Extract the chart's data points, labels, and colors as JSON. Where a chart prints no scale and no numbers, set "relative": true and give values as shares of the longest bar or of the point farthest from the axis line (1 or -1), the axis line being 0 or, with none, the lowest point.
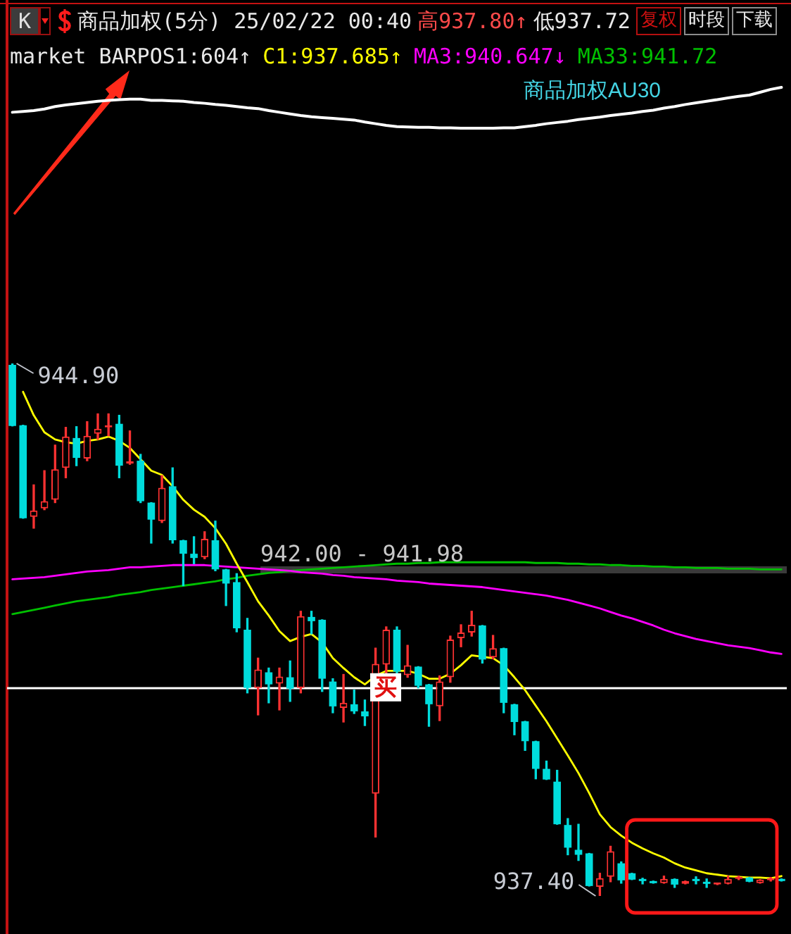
{
  "chart_data": [
    {
      "type": "line",
      "relative": true,
      "title": "商品加权(5分) 25/02/22 00:40",
      "categories": [
        null,
        null,
        null,
        null,
        null,
        null,
        null,
        null,
        null,
        null,
        null,
        null,
        null,
        null,
        null,
        null,
        null,
        null,
        null,
        null,
        null,
        null,
        null,
        null,
        null,
        null,
        null,
        null,
        null,
        null,
        null,
        null,
        null,
        null,
        null,
        null,
        null,
        null,
        null,
        null,
        null,
        null,
        null,
        null,
        null,
        null,
        null,
        null,
        null,
        null,
        null,
        null,
        null,
        null,
        null,
        null,
        null,
        null,
        null,
        null,
        null,
        null,
        null,
        null,
        null,
        null,
        null,
        null,
        null,
        null,
        null,
        null,
        null
      ],
      "series": [
        {
          "name": "商品加权AU30",
          "color": "#ffffff",
          "values": [
            0.39,
            0.41,
            0.43,
            0.47,
            0.53,
            0.57,
            0.6,
            0.63,
            0.66,
            0.68,
            0.7,
            0.71,
            0.71,
            0.68,
            0.68,
            0.67,
            0.66,
            0.63,
            0.61,
            0.58,
            0.56,
            0.53,
            0.5,
            0.48,
            0.43,
            0.39,
            0.35,
            0.31,
            0.28,
            0.26,
            0.24,
            0.22,
            0.2,
            0.15,
            0.11,
            0.07,
            0.04,
            0.03,
            0.02,
            0.02,
            0.01,
            0.01,
            0,
            0,
            0,
            0,
            0.01,
            0.01,
            0.04,
            0.07,
            0.11,
            0.14,
            0.17,
            0.21,
            0.24,
            0.27,
            0.31,
            0.34,
            0.37,
            0.41,
            0.44,
            0.49,
            0.53,
            0.58,
            0.62,
            0.66,
            0.7,
            0.74,
            0.78,
            0.81,
            0.88,
            0.95,
            1
          ]
        }
      ],
      "annotations": [
        "K",
        "高937.80↑",
        "低937.72",
        "复权",
        "时段",
        "下载",
        "market BARPOS1:604↑"
      ],
      "legend": "top",
      "tick_labels": false
    },
    {
      "type": "candlestick",
      "categories": [
        null,
        null,
        null,
        null,
        null,
        null,
        null,
        null,
        null,
        null,
        null,
        null,
        null,
        null,
        null,
        null,
        null,
        null,
        null,
        null,
        null,
        null,
        null,
        null,
        null,
        null,
        null,
        null,
        null,
        null,
        null,
        null,
        null,
        null,
        null,
        null,
        null,
        null,
        null,
        null,
        null,
        null,
        null,
        null,
        null,
        null,
        null,
        null,
        null,
        null,
        null,
        null,
        null,
        null,
        null,
        null,
        null,
        null,
        null,
        null,
        null,
        null,
        null,
        null,
        null,
        null,
        null,
        null,
        null,
        null,
        null,
        null,
        null
      ],
      "ohlc": [
        [
          944.88,
          944.9,
          944.02,
          944.02
        ],
        [
          944.03,
          944.03,
          942.72,
          942.72
        ],
        [
          942.74,
          943.19,
          942.58,
          942.83
        ],
        [
          942.86,
          943.39,
          942.84,
          942.96
        ],
        [
          942.98,
          943.75,
          942.94,
          943.41
        ],
        [
          943.43,
          944.0,
          943.29,
          943.87
        ],
        [
          943.85,
          944.01,
          943.46,
          943.57
        ],
        [
          943.56,
          944.08,
          943.53,
          943.88
        ],
        [
          943.91,
          944.19,
          943.83,
          943.98
        ],
        [
          944.0,
          944.19,
          943.88,
          944.02
        ],
        [
          944.05,
          944.17,
          943.29,
          943.46
        ],
        [
          943.49,
          943.95,
          943.48,
          943.52
        ],
        [
          943.53,
          943.62,
          942.94,
          942.96
        ],
        [
          942.94,
          942.94,
          942.37,
          942.7
        ],
        [
          942.68,
          943.32,
          942.66,
          943.15
        ],
        [
          943.17,
          943.43,
          942.37,
          942.41
        ],
        [
          942.41,
          942.41,
          941.77,
          942.22
        ],
        [
          942.22,
          942.46,
          942.08,
          942.16
        ],
        [
          942.17,
          942.53,
          942.15,
          942.43
        ],
        [
          942.41,
          942.68,
          941.98,
          942.0
        ],
        [
          942.0,
          942.0,
          941.49,
          941.8
        ],
        [
          941.82,
          941.94,
          941.12,
          941.17
        ],
        [
          941.15,
          941.31,
          940.26,
          940.33
        ],
        [
          940.33,
          940.75,
          939.95,
          940.59
        ],
        [
          940.55,
          940.61,
          940.12,
          940.38
        ],
        [
          940.39,
          940.61,
          940.02,
          940.49
        ],
        [
          940.48,
          940.71,
          940.14,
          940.32
        ],
        [
          940.33,
          941.41,
          940.26,
          941.34
        ],
        [
          941.33,
          941.41,
          941.09,
          941.27
        ],
        [
          941.29,
          941.29,
          940.28,
          940.46
        ],
        [
          940.42,
          940.46,
          939.98,
          940.07
        ],
        [
          940.05,
          940.52,
          939.85,
          940.12
        ],
        [
          940.1,
          940.3,
          939.97,
          940.0
        ],
        [
          940.0,
          940.16,
          939.8,
          939.93
        ],
        [
          938.84,
          940.89,
          938.23,
          940.67
        ],
        [
          940.66,
          941.19,
          940.5,
          941.15
        ],
        [
          941.15,
          941.19,
          940.5,
          940.56
        ],
        [
          940.51,
          940.93,
          940.48,
          940.65
        ],
        [
          940.63,
          940.63,
          940.33,
          940.36
        ],
        [
          940.38,
          940.38,
          939.79,
          940.1
        ],
        [
          940.07,
          940.5,
          939.87,
          940.42
        ],
        [
          940.48,
          941.06,
          940.41,
          941.01
        ],
        [
          941.03,
          941.22,
          940.91,
          941.11
        ],
        [
          941.11,
          941.41,
          941.06,
          941.22
        ],
        [
          941.21,
          941.21,
          940.68,
          940.73
        ],
        [
          940.76,
          941.07,
          940.74,
          940.89
        ],
        [
          940.89,
          940.89,
          939.98,
          940.12
        ],
        [
          940.1,
          940.1,
          939.67,
          939.85
        ],
        [
          939.86,
          939.86,
          939.45,
          939.58
        ],
        [
          939.58,
          939.58,
          939.05,
          939.19
        ],
        [
          939.19,
          939.3,
          939.04,
          939.04
        ],
        [
          939.01,
          939.17,
          938.41,
          938.41
        ],
        [
          938.4,
          938.49,
          937.98,
          938.08
        ],
        [
          938.05,
          938.41,
          937.9,
          937.98
        ],
        [
          938.0,
          938.0,
          937.54,
          937.54
        ],
        [
          937.53,
          937.72,
          937.4,
          937.65
        ],
        [
          937.67,
          938.1,
          937.6,
          938.03
        ],
        [
          937.86,
          937.88,
          937.58,
          937.62
        ],
        [
          937.72,
          937.72,
          937.63,
          937.63
        ],
        [
          937.62,
          937.65,
          937.57,
          937.61
        ],
        [
          937.61,
          937.61,
          937.58,
          937.58
        ],
        [
          937.58,
          937.68,
          937.58,
          937.64
        ],
        [
          937.64,
          937.64,
          937.52,
          937.56
        ],
        [
          937.57,
          937.61,
          937.57,
          937.61
        ],
        [
          937.62,
          937.67,
          937.57,
          937.61
        ],
        [
          937.6,
          937.64,
          937.52,
          937.57
        ],
        [
          937.56,
          937.58,
          937.56,
          937.57
        ],
        [
          937.57,
          937.68,
          937.57,
          937.64
        ],
        [
          937.64,
          937.68,
          937.63,
          937.65
        ],
        [
          937.66,
          937.66,
          937.6,
          937.6
        ],
        [
          937.58,
          937.63,
          937.58,
          937.63
        ],
        [
          937.62,
          937.66,
          937.61,
          937.64
        ],
        [
          937.64,
          937.64,
          937.61,
          937.61
        ]
      ],
      "colors": [
        "#00dcdc",
        "#00dcdc",
        "#ff3232",
        "#ff3232",
        "#ff3232",
        "#ff3232",
        "#00dcdc",
        "#ff3232",
        "#ff3232",
        "#ff3232",
        "#00dcdc",
        "#ff3232",
        "#00dcdc",
        "#00dcdc",
        "#ff3232",
        "#00dcdc",
        "#00dcdc",
        "#00dcdc",
        "#ff3232",
        "#00dcdc",
        "#00dcdc",
        "#00dcdc",
        "#00dcdc",
        "#ff3232",
        "#00dcdc",
        "#ff3232",
        "#00dcdc",
        "#ff3232",
        "#00dcdc",
        "#00dcdc",
        "#00dcdc",
        "#ff3232",
        "#00dcdc",
        "#00dcdc",
        "#ff3232",
        "#ff3232",
        "#00dcdc",
        "#ff3232",
        "#00dcdc",
        "#00dcdc",
        "#ff3232",
        "#ff3232",
        "#ff3232",
        "#ff3232",
        "#00dcdc",
        "#ff3232",
        "#00dcdc",
        "#00dcdc",
        "#00dcdc",
        "#00dcdc",
        "#00dcdc",
        "#00dcdc",
        "#00dcdc",
        "#00dcdc",
        "#00dcdc",
        "#ff3232",
        "#ff3232",
        "#00dcdc",
        "#00dcdc",
        "#00dcdc",
        "#00dcdc",
        "#ff3232",
        "#00dcdc",
        "#ff3232",
        "#00dcdc",
        "#00dcdc",
        "#ff3232",
        "#ff3232",
        "#ff3232",
        "#00dcdc",
        "#ff3232",
        "#ff3232",
        "#00dcdc"
      ],
      "series": [
        {
          "name": "C1:937.685↑",
          "type": "line",
          "color": "#ffff00",
          "values": [
            null,
            944.5,
            944.17,
            943.93,
            943.83,
            943.79,
            943.77,
            943.81,
            943.83,
            943.87,
            943.81,
            943.71,
            943.55,
            943.39,
            943.33,
            943.17,
            942.98,
            942.84,
            942.74,
            942.58,
            942.36,
            942.08,
            941.82,
            941.55,
            941.35,
            941.13,
            940.99,
            941.05,
            941.09,
            940.97,
            940.75,
            940.61,
            940.48,
            940.38,
            940.5,
            940.57,
            940.57,
            940.57,
            940.53,
            940.46,
            940.46,
            940.53,
            940.65,
            940.79,
            940.77,
            940.75,
            940.65,
            940.48,
            940.3,
            940.08,
            939.86,
            939.62,
            939.38,
            939.13,
            938.85,
            938.55,
            938.37,
            938.25,
            938.15,
            938.07,
            938.0,
            937.94,
            937.86,
            937.8,
            937.76,
            937.72,
            937.7,
            937.68,
            937.67,
            937.66,
            937.66,
            937.65,
            937.68
          ]
        },
        {
          "name": "MA3:940.647↓",
          "type": "line",
          "color": "#ff00ff",
          "values": [
            941.86,
            941.87,
            941.88,
            941.89,
            941.91,
            941.93,
            941.95,
            941.97,
            941.98,
            941.99,
            942.01,
            942.03,
            942.03,
            942.04,
            942.05,
            942.06,
            942.06,
            942.06,
            942.06,
            942.05,
            942.04,
            942.03,
            942.02,
            942.01,
            942.0,
            941.99,
            941.98,
            941.96,
            941.95,
            941.94,
            941.92,
            941.91,
            941.89,
            941.88,
            941.87,
            941.86,
            941.84,
            941.83,
            941.82,
            941.8,
            941.79,
            941.78,
            941.77,
            941.76,
            941.75,
            941.73,
            941.71,
            941.69,
            941.67,
            941.65,
            941.63,
            941.6,
            941.57,
            941.53,
            941.49,
            941.45,
            941.4,
            941.35,
            941.31,
            941.26,
            941.21,
            941.15,
            941.1,
            941.06,
            941.02,
            940.99,
            940.96,
            940.93,
            940.91,
            940.89,
            940.86,
            940.83,
            940.81
          ]
        },
        {
          "name": "MA33:941.72",
          "type": "line",
          "color": "#00c000",
          "values": [
            941.37,
            941.4,
            941.43,
            941.46,
            941.49,
            941.52,
            941.55,
            941.57,
            941.59,
            941.61,
            941.64,
            941.66,
            941.68,
            941.71,
            941.73,
            941.75,
            941.77,
            941.79,
            941.81,
            941.83,
            941.86,
            941.88,
            941.91,
            941.93,
            941.95,
            941.96,
            941.98,
            941.99,
            942.0,
            942.01,
            942.02,
            942.03,
            942.04,
            942.05,
            942.06,
            942.07,
            942.08,
            942.08,
            942.09,
            942.09,
            942.1,
            942.1,
            942.1,
            942.1,
            942.1,
            942.1,
            942.1,
            942.1,
            942.1,
            942.09,
            942.09,
            942.09,
            942.08,
            942.08,
            942.07,
            942.07,
            942.06,
            942.06,
            942.05,
            942.05,
            942.04,
            942.04,
            942.03,
            942.03,
            942.02,
            942.02,
            942.02,
            942.01,
            942.01,
            942.01,
            942.0,
            942.0,
            942.0
          ]
        }
      ],
      "ref_lines": [
        {
          "axis": "y",
          "value": 940.34,
          "label": "买",
          "color": "#ffffff"
        },
        {
          "axis": "y",
          "value": 942.0,
          "label": "942.00 - 941.98",
          "color": "#3a3a3a"
        }
      ],
      "annotations": [
        "944.90",
        "937.40"
      ],
      "legend": "top",
      "tick_labels": false
    }
  ]
}
